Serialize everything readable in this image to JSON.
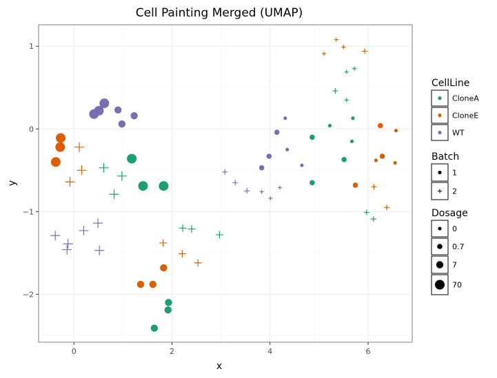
{
  "chart_data": {
    "type": "scatter",
    "title": "Cell Painting Merged (UMAP)",
    "xlabel": "x",
    "ylabel": "y",
    "xlim": [
      -0.72,
      6.9
    ],
    "ylim": [
      -2.58,
      1.26
    ],
    "x_ticks": [
      0,
      2,
      4,
      6
    ],
    "y_ticks": [
      -2,
      -1,
      0,
      1
    ],
    "x_tick_labels": [
      "0",
      "2",
      "4",
      "6"
    ],
    "y_tick_labels": [
      "−2",
      "−1",
      "0",
      "1"
    ],
    "grid": true,
    "legend_position": "right",
    "colors": {
      "CloneA": "#1b9e77",
      "CloneE": "#d95f02",
      "WT": "#7570b3"
    },
    "legends": [
      {
        "title": "CellLine",
        "entries": [
          "CloneA",
          "CloneE",
          "WT"
        ]
      },
      {
        "title": "Batch",
        "entries": [
          "1",
          "2"
        ]
      },
      {
        "title": "Dosage",
        "entries": [
          "0",
          "0.7",
          "7",
          "70"
        ]
      }
    ],
    "points": [
      {
        "x": 0.62,
        "y": 0.31,
        "cellline": "WT",
        "batch": "1",
        "dosage": "70"
      },
      {
        "x": 0.51,
        "y": 0.22,
        "cellline": "WT",
        "batch": "1",
        "dosage": "70"
      },
      {
        "x": 0.41,
        "y": 0.18,
        "cellline": "WT",
        "batch": "1",
        "dosage": "70"
      },
      {
        "x": 0.9,
        "y": 0.23,
        "cellline": "WT",
        "batch": "1",
        "dosage": "7"
      },
      {
        "x": 1.23,
        "y": 0.16,
        "cellline": "WT",
        "batch": "1",
        "dosage": "7"
      },
      {
        "x": 0.98,
        "y": 0.06,
        "cellline": "WT",
        "batch": "1",
        "dosage": "7"
      },
      {
        "x": -0.27,
        "y": -0.11,
        "cellline": "CloneE",
        "batch": "1",
        "dosage": "70"
      },
      {
        "x": -0.28,
        "y": -0.22,
        "cellline": "CloneE",
        "batch": "1",
        "dosage": "70"
      },
      {
        "x": -0.37,
        "y": -0.4,
        "cellline": "CloneE",
        "batch": "1",
        "dosage": "70"
      },
      {
        "x": 1.18,
        "y": -0.36,
        "cellline": "CloneA",
        "batch": "1",
        "dosage": "70"
      },
      {
        "x": 1.41,
        "y": -0.69,
        "cellline": "CloneA",
        "batch": "1",
        "dosage": "70"
      },
      {
        "x": 1.83,
        "y": -0.69,
        "cellline": "CloneA",
        "batch": "1",
        "dosage": "70"
      },
      {
        "x": 1.36,
        "y": -1.88,
        "cellline": "CloneE",
        "batch": "1",
        "dosage": "7"
      },
      {
        "x": 1.61,
        "y": -1.88,
        "cellline": "CloneE",
        "batch": "1",
        "dosage": "7"
      },
      {
        "x": 1.83,
        "y": -1.68,
        "cellline": "CloneE",
        "batch": "1",
        "dosage": "7"
      },
      {
        "x": 1.93,
        "y": -2.1,
        "cellline": "CloneA",
        "batch": "1",
        "dosage": "7"
      },
      {
        "x": 1.92,
        "y": -2.19,
        "cellline": "CloneA",
        "batch": "1",
        "dosage": "7"
      },
      {
        "x": 1.64,
        "y": -2.41,
        "cellline": "CloneA",
        "batch": "1",
        "dosage": "7"
      },
      {
        "x": 0.11,
        "y": -0.22,
        "cellline": "CloneE",
        "batch": "2",
        "dosage": "70"
      },
      {
        "x": 0.16,
        "y": -0.5,
        "cellline": "CloneE",
        "batch": "2",
        "dosage": "70"
      },
      {
        "x": -0.08,
        "y": -0.64,
        "cellline": "CloneE",
        "batch": "2",
        "dosage": "70"
      },
      {
        "x": 0.61,
        "y": -0.47,
        "cellline": "CloneA",
        "batch": "2",
        "dosage": "70"
      },
      {
        "x": 0.98,
        "y": -0.57,
        "cellline": "CloneA",
        "batch": "2",
        "dosage": "70"
      },
      {
        "x": 0.82,
        "y": -0.79,
        "cellline": "CloneA",
        "batch": "2",
        "dosage": "70"
      },
      {
        "x": -0.38,
        "y": -1.29,
        "cellline": "WT",
        "batch": "2",
        "dosage": "70"
      },
      {
        "x": -0.12,
        "y": -1.39,
        "cellline": "WT",
        "batch": "2",
        "dosage": "70"
      },
      {
        "x": -0.14,
        "y": -1.46,
        "cellline": "WT",
        "batch": "2",
        "dosage": "70"
      },
      {
        "x": 0.2,
        "y": -1.23,
        "cellline": "WT",
        "batch": "2",
        "dosage": "70"
      },
      {
        "x": 0.49,
        "y": -1.14,
        "cellline": "WT",
        "batch": "2",
        "dosage": "70"
      },
      {
        "x": 0.52,
        "y": -1.47,
        "cellline": "WT",
        "batch": "2",
        "dosage": "70"
      },
      {
        "x": 1.82,
        "y": -1.38,
        "cellline": "CloneE",
        "batch": "2",
        "dosage": "7"
      },
      {
        "x": 2.21,
        "y": -1.51,
        "cellline": "CloneE",
        "batch": "2",
        "dosage": "7"
      },
      {
        "x": 2.53,
        "y": -1.62,
        "cellline": "CloneE",
        "batch": "2",
        "dosage": "7"
      },
      {
        "x": 2.22,
        "y": -1.2,
        "cellline": "CloneA",
        "batch": "2",
        "dosage": "7"
      },
      {
        "x": 2.4,
        "y": -1.21,
        "cellline": "CloneA",
        "batch": "2",
        "dosage": "7"
      },
      {
        "x": 2.97,
        "y": -1.28,
        "cellline": "CloneA",
        "batch": "2",
        "dosage": "7"
      },
      {
        "x": 3.08,
        "y": -0.52,
        "cellline": "WT",
        "batch": "2",
        "dosage": "0.7"
      },
      {
        "x": 3.29,
        "y": -0.65,
        "cellline": "WT",
        "batch": "2",
        "dosage": "0.7"
      },
      {
        "x": 3.53,
        "y": -0.75,
        "cellline": "WT",
        "batch": "2",
        "dosage": "0.7"
      },
      {
        "x": 3.83,
        "y": -0.76,
        "cellline": "WT",
        "batch": "2",
        "dosage": "0"
      },
      {
        "x": 4.01,
        "y": -0.84,
        "cellline": "WT",
        "batch": "2",
        "dosage": "0"
      },
      {
        "x": 4.2,
        "y": -0.71,
        "cellline": "WT",
        "batch": "2",
        "dosage": "0"
      },
      {
        "x": 4.31,
        "y": 0.13,
        "cellline": "WT",
        "batch": "1",
        "dosage": "0"
      },
      {
        "x": 4.14,
        "y": -0.04,
        "cellline": "WT",
        "batch": "1",
        "dosage": "0.7"
      },
      {
        "x": 4.35,
        "y": -0.25,
        "cellline": "WT",
        "batch": "1",
        "dosage": "0"
      },
      {
        "x": 3.98,
        "y": -0.33,
        "cellline": "WT",
        "batch": "1",
        "dosage": "0.7"
      },
      {
        "x": 3.83,
        "y": -0.47,
        "cellline": "WT",
        "batch": "1",
        "dosage": "0.7"
      },
      {
        "x": 4.65,
        "y": -0.44,
        "cellline": "WT",
        "batch": "1",
        "dosage": "0"
      },
      {
        "x": 4.86,
        "y": -0.1,
        "cellline": "CloneA",
        "batch": "1",
        "dosage": "0.7"
      },
      {
        "x": 4.86,
        "y": -0.65,
        "cellline": "CloneA",
        "batch": "1",
        "dosage": "0.7"
      },
      {
        "x": 5.22,
        "y": 0.04,
        "cellline": "CloneA",
        "batch": "1",
        "dosage": "0"
      },
      {
        "x": 5.51,
        "y": -0.37,
        "cellline": "CloneA",
        "batch": "1",
        "dosage": "0.7"
      },
      {
        "x": 5.67,
        "y": -0.15,
        "cellline": "CloneA",
        "batch": "1",
        "dosage": "0"
      },
      {
        "x": 5.69,
        "y": 0.13,
        "cellline": "CloneA",
        "batch": "1",
        "dosage": "0"
      },
      {
        "x": 5.74,
        "y": -0.68,
        "cellline": "CloneE",
        "batch": "1",
        "dosage": "0.7"
      },
      {
        "x": 6.25,
        "y": 0.04,
        "cellline": "CloneE",
        "batch": "1",
        "dosage": "0.7"
      },
      {
        "x": 6.29,
        "y": -0.33,
        "cellline": "CloneE",
        "batch": "1",
        "dosage": "0.7"
      },
      {
        "x": 6.16,
        "y": -0.38,
        "cellline": "CloneE",
        "batch": "1",
        "dosage": "0"
      },
      {
        "x": 6.55,
        "y": -0.41,
        "cellline": "CloneE",
        "batch": "1",
        "dosage": "0"
      },
      {
        "x": 6.57,
        "y": -0.02,
        "cellline": "CloneE",
        "batch": "1",
        "dosage": "0"
      },
      {
        "x": 5.1,
        "y": 0.91,
        "cellline": "CloneE",
        "batch": "2",
        "dosage": "0"
      },
      {
        "x": 5.35,
        "y": 1.08,
        "cellline": "CloneE",
        "batch": "2",
        "dosage": "0"
      },
      {
        "x": 5.5,
        "y": 0.99,
        "cellline": "CloneE",
        "batch": "2",
        "dosage": "0"
      },
      {
        "x": 5.93,
        "y": 0.94,
        "cellline": "CloneE",
        "batch": "2",
        "dosage": "0.7"
      },
      {
        "x": 5.56,
        "y": 0.69,
        "cellline": "CloneA",
        "batch": "2",
        "dosage": "0"
      },
      {
        "x": 5.72,
        "y": 0.73,
        "cellline": "CloneA",
        "batch": "2",
        "dosage": "0"
      },
      {
        "x": 5.33,
        "y": 0.46,
        "cellline": "CloneA",
        "batch": "2",
        "dosage": "0.7"
      },
      {
        "x": 5.56,
        "y": 0.35,
        "cellline": "CloneA",
        "batch": "2",
        "dosage": "0"
      },
      {
        "x": 6.12,
        "y": -0.7,
        "cellline": "CloneE",
        "batch": "2",
        "dosage": "0.7"
      },
      {
        "x": 6.38,
        "y": -0.95,
        "cellline": "CloneE",
        "batch": "2",
        "dosage": "0.7"
      },
      {
        "x": 5.97,
        "y": -1.01,
        "cellline": "CloneA",
        "batch": "2",
        "dosage": "0.7"
      },
      {
        "x": 6.11,
        "y": -1.09,
        "cellline": "CloneA",
        "batch": "2",
        "dosage": "0.7"
      }
    ]
  }
}
